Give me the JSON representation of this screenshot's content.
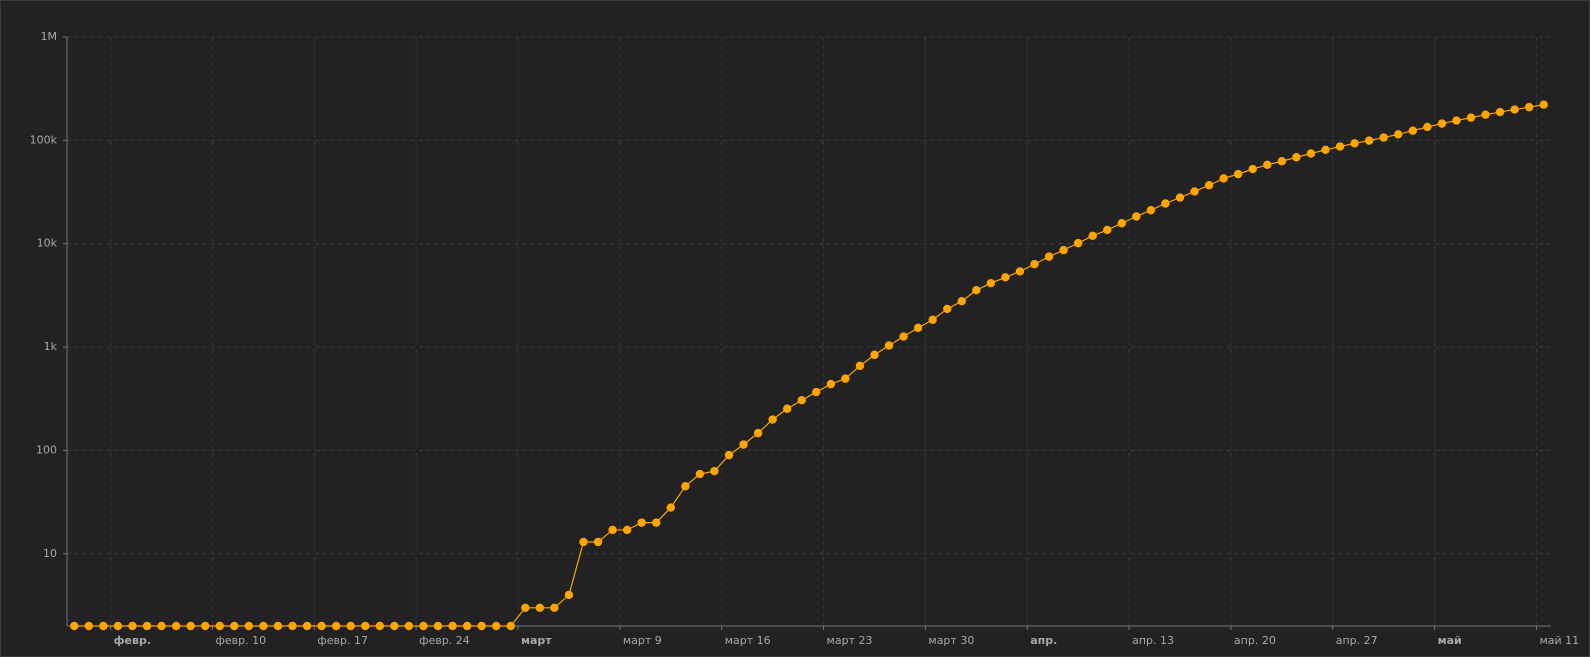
{
  "chart_data": {
    "type": "line",
    "color": "#ffa500",
    "log_scale": true,
    "grid": true,
    "x": [
      "01-31",
      "02-01",
      "02-02",
      "02-03",
      "02-04",
      "02-05",
      "02-06",
      "02-07",
      "02-08",
      "02-09",
      "02-10",
      "02-11",
      "02-12",
      "02-13",
      "02-14",
      "02-15",
      "02-16",
      "02-17",
      "02-18",
      "02-19",
      "02-20",
      "02-21",
      "02-22",
      "02-23",
      "02-24",
      "02-25",
      "02-26",
      "02-27",
      "02-28",
      "02-29",
      "03-01",
      "03-02",
      "03-03",
      "03-04",
      "03-05",
      "03-06",
      "03-07",
      "03-08",
      "03-09",
      "03-10",
      "03-11",
      "03-12",
      "03-13",
      "03-14",
      "03-15",
      "03-16",
      "03-17",
      "03-18",
      "03-19",
      "03-20",
      "03-21",
      "03-22",
      "03-23",
      "03-24",
      "03-25",
      "03-26",
      "03-27",
      "03-28",
      "03-29",
      "03-30",
      "03-31",
      "04-01",
      "04-02",
      "04-03",
      "04-04",
      "04-05",
      "04-06",
      "04-07",
      "04-08",
      "04-09",
      "04-10",
      "04-11",
      "04-12",
      "04-13",
      "04-14",
      "04-15",
      "04-16",
      "04-17",
      "04-18",
      "04-19",
      "04-20",
      "04-21",
      "04-22",
      "04-23",
      "04-24",
      "04-25",
      "04-26",
      "04-27",
      "04-28",
      "04-29",
      "04-30",
      "05-01",
      "05-02",
      "05-03",
      "05-04",
      "05-05",
      "05-06",
      "05-07",
      "05-08",
      "05-09",
      "05-10",
      "05-11"
    ],
    "values": [
      2,
      2,
      2,
      2,
      2,
      2,
      2,
      2,
      2,
      2,
      2,
      2,
      2,
      2,
      2,
      2,
      2,
      2,
      2,
      2,
      2,
      2,
      2,
      2,
      2,
      2,
      2,
      2,
      2,
      2,
      2,
      3,
      3,
      3,
      4,
      13,
      13,
      17,
      17,
      20,
      20,
      28,
      45,
      59,
      63,
      90,
      114,
      147,
      199,
      253,
      306,
      367,
      438,
      495,
      658,
      840,
      1036,
      1264,
      1534,
      1836,
      2337,
      2777,
      3548,
      4149,
      4731,
      5389,
      6343,
      7497,
      8672,
      10131,
      11917,
      13584,
      15770,
      18328,
      21102,
      24490,
      27938,
      32008,
      36793,
      42853,
      47121,
      52763,
      57999,
      62773,
      68622,
      74588,
      80949,
      87147,
      93558,
      99399,
      106498,
      114431,
      124054,
      134687,
      145268,
      155370,
      165929,
      177160,
      187859,
      198676,
      209688,
      221344
    ],
    "xlim": [
      "01-31",
      "05-12"
    ],
    "xticks": [
      {
        "value": "02-03",
        "label": "февр."
      },
      {
        "value": "02-10",
        "label": "февр. 10"
      },
      {
        "value": "02-17",
        "label": "февр. 17"
      },
      {
        "value": "02-24",
        "label": "февр. 24"
      },
      {
        "value": "03-02",
        "label": "март"
      },
      {
        "value": "03-09",
        "label": "март 9"
      },
      {
        "value": "03-16",
        "label": "март 16"
      },
      {
        "value": "03-23",
        "label": "март 23"
      },
      {
        "value": "03-30",
        "label": "март 30"
      },
      {
        "value": "04-06",
        "label": "апр."
      },
      {
        "value": "04-13",
        "label": "апр. 13"
      },
      {
        "value": "04-20",
        "label": "апр. 20"
      },
      {
        "value": "04-27",
        "label": "апр. 27"
      },
      {
        "value": "05-04",
        "label": "май"
      },
      {
        "value": "05-11",
        "label": "май 11"
      }
    ],
    "ylim": [
      2,
      1000000
    ],
    "yticks": [
      10,
      100,
      {
        "value": 1000,
        "label": "1k"
      },
      {
        "value": 10000,
        "label": "10k"
      },
      {
        "value": 100000,
        "label": "100k"
      },
      {
        "value": 1000000,
        "label": "1M"
      }
    ]
  }
}
